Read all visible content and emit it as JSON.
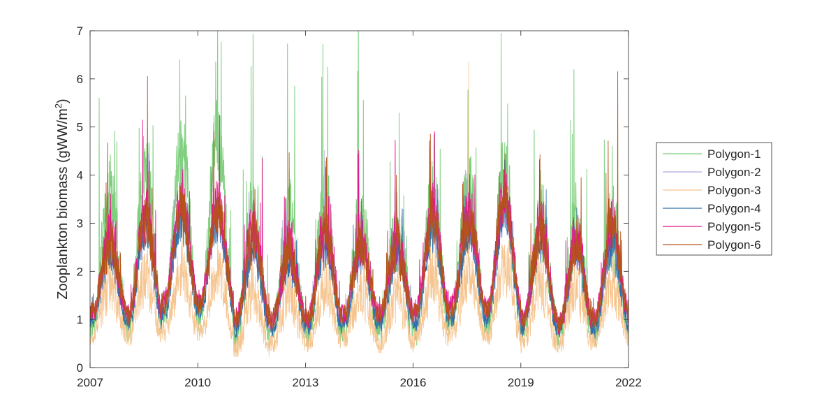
{
  "chart_data": {
    "type": "line",
    "title": "",
    "xlabel": "",
    "ylabel": "Zooplankton biomass (gWW/m²)",
    "ylabel_parts": {
      "main": "Zooplankton biomass (gWW/m",
      "superscript": "2",
      "close": ")"
    },
    "xlim": [
      2007,
      2022
    ],
    "ylim": [
      0,
      7
    ],
    "x_ticks": [
      "2007",
      "2010",
      "2013",
      "2016",
      "2019",
      "2022"
    ],
    "y_ticks": [
      "0",
      "1",
      "2",
      "3",
      "4",
      "5",
      "6",
      "7"
    ],
    "grid": false,
    "legend_position": "outside-right",
    "series": [
      {
        "name": "Polygon-1",
        "color": "#7fcf7f",
        "width": 1.0,
        "seed": 11,
        "summer_peaks": [
          3.6,
          4.0,
          4.6,
          4.8,
          3.3,
          3.2,
          3.4,
          3.0,
          2.8,
          3.5,
          3.7,
          4.0,
          3.0,
          2.9,
          2.9
        ],
        "winter_troughs": [
          0.9,
          0.8,
          1.1,
          1.0,
          0.6,
          0.8,
          0.7,
          0.8,
          0.8,
          0.8,
          1.0,
          0.9,
          0.8,
          0.7,
          0.8
        ],
        "noise": 0.55,
        "spike_max": 2.8,
        "marked_peaks": [
          [
            2007.25,
            5.6
          ],
          [
            2009.5,
            6.4
          ],
          [
            2010.5,
            6.35
          ],
          [
            2012.7,
            5.85
          ],
          [
            2018.45,
            6.95
          ],
          [
            2021.55,
            4.6
          ]
        ]
      },
      {
        "name": "Polygon-2",
        "color": "#b5a6e0",
        "width": 0.8,
        "seed": 23,
        "summer_peaks": [
          2.6,
          3.1,
          3.2,
          3.2,
          2.6,
          2.4,
          2.7,
          2.5,
          2.5,
          3.0,
          3.0,
          3.4,
          2.8,
          2.6,
          2.7
        ],
        "winter_troughs": [
          1.1,
          1.0,
          1.3,
          1.3,
          0.9,
          1.0,
          1.0,
          1.0,
          1.1,
          1.1,
          1.2,
          1.2,
          1.0,
          0.9,
          1.0
        ],
        "noise": 0.3,
        "spike_max": 0.9,
        "marked_peaks": []
      },
      {
        "name": "Polygon-3",
        "color": "#f6c48e",
        "width": 0.8,
        "seed": 37,
        "summer_peaks": [
          1.7,
          1.9,
          2.0,
          2.0,
          1.6,
          1.5,
          1.7,
          1.6,
          1.5,
          1.8,
          1.9,
          2.1,
          1.7,
          1.6,
          1.7
        ],
        "winter_troughs": [
          0.7,
          0.6,
          0.7,
          0.7,
          0.4,
          0.5,
          0.5,
          0.6,
          0.5,
          0.6,
          0.7,
          0.6,
          0.5,
          0.5,
          0.6
        ],
        "noise": 0.35,
        "spike_max": 0.8,
        "marked_peaks": [
          [
            2017.55,
            6.35
          ]
        ]
      },
      {
        "name": "Polygon-4",
        "color": "#2e6fa8",
        "width": 0.8,
        "seed": 41,
        "summer_peaks": [
          2.5,
          2.9,
          3.1,
          3.1,
          2.5,
          2.3,
          2.6,
          2.4,
          2.4,
          2.9,
          2.9,
          3.3,
          2.7,
          2.5,
          2.6
        ],
        "winter_troughs": [
          1.0,
          0.9,
          1.1,
          1.2,
          0.8,
          0.8,
          0.8,
          0.9,
          0.9,
          0.9,
          1.0,
          1.0,
          0.8,
          0.8,
          0.8
        ],
        "noise": 0.3,
        "spike_max": 0.9,
        "marked_peaks": []
      },
      {
        "name": "Polygon-5",
        "color": "#e3168c",
        "width": 0.9,
        "seed": 53,
        "summer_peaks": [
          2.7,
          3.2,
          3.5,
          3.4,
          2.9,
          2.5,
          2.9,
          2.7,
          2.6,
          3.3,
          3.2,
          3.6,
          2.9,
          2.7,
          2.9
        ],
        "winter_troughs": [
          1.2,
          1.1,
          1.4,
          1.4,
          1.0,
          1.0,
          1.0,
          1.1,
          1.1,
          1.2,
          1.3,
          1.2,
          1.0,
          0.9,
          1.1
        ],
        "noise": 0.35,
        "spike_max": 1.3,
        "marked_peaks": [
          [
            2008.65,
            4.3
          ],
          [
            2011.8,
            4.35
          ],
          [
            2016.6,
            4.9
          ]
        ]
      },
      {
        "name": "Polygon-6",
        "color": "#b5531a",
        "width": 0.9,
        "seed": 67,
        "summer_peaks": [
          2.6,
          3.1,
          3.3,
          3.3,
          2.7,
          2.4,
          2.8,
          2.6,
          2.5,
          3.1,
          3.1,
          3.5,
          2.8,
          2.6,
          3.0
        ],
        "winter_troughs": [
          1.2,
          1.1,
          1.3,
          1.3,
          1.0,
          1.0,
          1.0,
          1.1,
          1.1,
          1.1,
          1.2,
          1.2,
          1.0,
          0.9,
          1.0
        ],
        "noise": 0.33,
        "spike_max": 1.2,
        "marked_peaks": [
          [
            2008.6,
            6.05
          ],
          [
            2021.7,
            6.15
          ]
        ]
      }
    ]
  }
}
